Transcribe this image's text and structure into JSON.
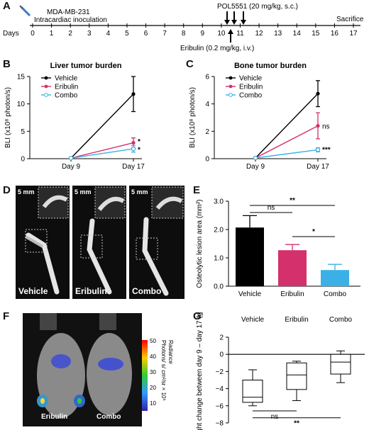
{
  "panel_labels": {
    "a": "A",
    "b": "B",
    "c": "C",
    "d": "D",
    "e": "E",
    "f": "F",
    "g": "G"
  },
  "timeline": {
    "days_label": "Days",
    "days": [
      "0",
      "1",
      "2",
      "3",
      "4",
      "5",
      "6",
      "7",
      "8",
      "9",
      "10",
      "11",
      "12",
      "13",
      "14",
      "15",
      "16",
      "17"
    ],
    "inoculation_line1": "MDA-MB-231",
    "inoculation_line2": "Intracardiac inoculation",
    "pol_label": "POL5551 (20 mg/kg, s.c.)",
    "eribulin_label": "Eribulin (0.2 mg/kg, i.v.)",
    "sacrifice_label": "Sacrifice"
  },
  "panel_d": {
    "scale_bar": "5 mm",
    "captions": [
      "Vehicle",
      "Eribulin",
      "Combo"
    ]
  },
  "panel_f": {
    "captions": [
      "Eribulin",
      "Combo"
    ],
    "colorbar_ticks": [
      "50",
      "40",
      "30",
      "20",
      "10"
    ],
    "colorbar_label": "Radiance\nPhotons/ s/ cm²/sr × 10⁶"
  },
  "colors": {
    "vehicle": "#000000",
    "eribulin": "#d4306c",
    "combo": "#3ab0e6"
  },
  "chart_data": [
    {
      "id": "B",
      "type": "line",
      "title": "Liver tumor burden",
      "ylabel": "BLI (x10⁸ photon/s)",
      "categories": [
        "Day 9",
        "Day 17"
      ],
      "ylim": [
        0,
        15
      ],
      "yticks": [
        "0",
        "5",
        "10",
        "15"
      ],
      "legend": "top-left",
      "series": [
        {
          "name": "Vehicle",
          "values": [
            0.1,
            11.8
          ],
          "err": [
            0,
            3.2
          ]
        },
        {
          "name": "Eribulin",
          "values": [
            0.1,
            2.9
          ],
          "err": [
            0,
            0.9
          ]
        },
        {
          "name": "Combo",
          "values": [
            0.1,
            1.8
          ],
          "err": [
            0,
            0.6
          ]
        }
      ],
      "annotations": [
        "*",
        "*"
      ]
    },
    {
      "id": "C",
      "type": "line",
      "title": "Bone tumor burden",
      "ylabel": "BLI (x10⁸ photon/s)",
      "categories": [
        "Day 9",
        "Day 17"
      ],
      "ylim": [
        0,
        6
      ],
      "yticks": [
        "0",
        "2",
        "4",
        "6"
      ],
      "legend": "top-left",
      "series": [
        {
          "name": "Vehicle",
          "values": [
            0.05,
            4.75
          ],
          "err": [
            0,
            0.95
          ]
        },
        {
          "name": "Eribulin",
          "values": [
            0.05,
            2.4
          ],
          "err": [
            0,
            0.95
          ]
        },
        {
          "name": "Combo",
          "values": [
            0.05,
            0.65
          ],
          "err": [
            0,
            0.15
          ]
        }
      ],
      "annotations": [
        "ns",
        "***"
      ]
    },
    {
      "id": "E",
      "type": "bar",
      "ylabel": "Osteolytic lesion area (mm²)",
      "categories": [
        "Vehicle",
        "Eribulin",
        "Combo"
      ],
      "values": [
        2.07,
        1.27,
        0.57
      ],
      "err": [
        0.42,
        0.2,
        0.2
      ],
      "ylim": [
        0,
        3
      ],
      "yticks": [
        "0.0",
        "1.0",
        "2.0",
        "3.0"
      ],
      "annotations": [
        "**",
        "ns",
        "*"
      ]
    },
    {
      "id": "G",
      "type": "box",
      "ylabel": "Weight change between day 9 – day 17 (g)",
      "categories": [
        "Vehicle",
        "Eribulin",
        "Combo"
      ],
      "ylim": [
        -8,
        2
      ],
      "yticks": [
        "2",
        "0",
        "−2",
        "−4",
        "−6",
        "−8"
      ],
      "boxes": [
        {
          "min": -6.0,
          "q1": -5.6,
          "median": -5.0,
          "q3": -3.0,
          "max": -1.8
        },
        {
          "min": -5.4,
          "q1": -4.1,
          "median": -2.4,
          "q3": -1.0,
          "max": -0.8
        },
        {
          "min": -3.3,
          "q1": -2.3,
          "median": -0.9,
          "q3": 0.0,
          "max": 0.4
        }
      ],
      "annotations": [
        "ns",
        "**"
      ]
    }
  ]
}
